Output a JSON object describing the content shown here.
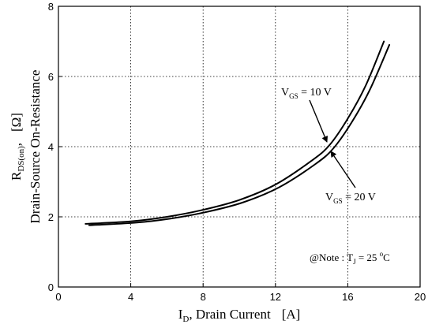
{
  "chart_data": {
    "type": "line",
    "xlim": [
      0,
      20
    ],
    "ylim": [
      0,
      8
    ],
    "xticks": [
      "0",
      "4",
      "8",
      "12",
      "16",
      "20"
    ],
    "yticks": [
      "0",
      "2",
      "4",
      "6",
      "8"
    ],
    "grid": true,
    "xlabel": {
      "main": "I",
      "sub": "D",
      "rest": ",  Drain Current",
      "unit": "[A]"
    },
    "ylabel": {
      "line1_main": "R",
      "line1_sub": "DS(on)",
      "line1_rest": ",",
      "line1_unit": "[Ω]",
      "line2": "Drain-Source On-Resistance"
    },
    "series": [
      {
        "id": "vgs10",
        "x": [
          1.5,
          4,
          6,
          8,
          10,
          12,
          14,
          15,
          16,
          17,
          18
        ],
        "y": [
          1.8,
          1.87,
          2.0,
          2.2,
          2.48,
          2.92,
          3.6,
          4.05,
          4.8,
          5.75,
          7.0
        ]
      },
      {
        "id": "vgs20",
        "x": [
          1.7,
          4.2,
          6.2,
          8.2,
          10.2,
          12.2,
          14.2,
          15.2,
          16.2,
          17.2,
          18.3
        ],
        "y": [
          1.76,
          1.83,
          1.95,
          2.14,
          2.41,
          2.84,
          3.5,
          3.95,
          4.68,
          5.6,
          6.9
        ]
      }
    ],
    "annotations": {
      "vgs10": {
        "v": "V",
        "sub": "GS",
        "value": " = 10 V"
      },
      "vgs20": {
        "v": "V",
        "sub": "GS",
        "value": " = 20 V"
      },
      "note": {
        "prefix": "@Note : T",
        "sub": "J",
        "value": " = 25 ",
        "sup": "o",
        "unit": "C"
      }
    }
  }
}
